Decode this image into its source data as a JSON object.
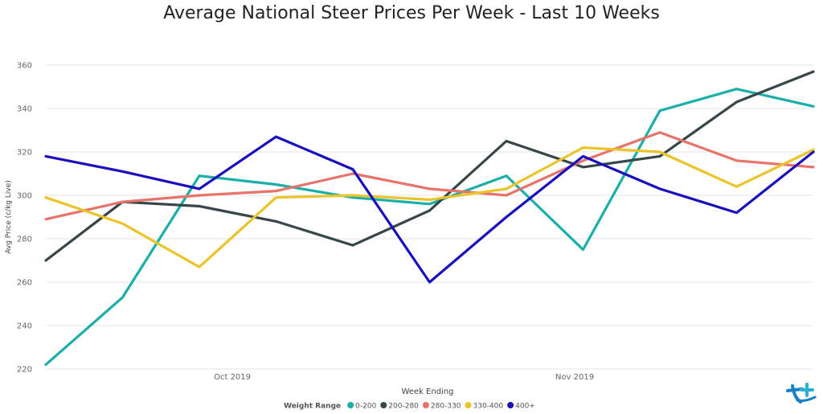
{
  "chart_data": {
    "type": "line",
    "title": "Average National Steer Prices Per Week - Last 10 Weeks",
    "xlabel": "Week Ending",
    "ylabel": "Avg Price (c/kg Live)",
    "ylim": [
      220,
      360
    ],
    "yticks": [
      220,
      240,
      260,
      280,
      300,
      320,
      340,
      360
    ],
    "xticks": [
      {
        "label": "Oct 2019",
        "x": 2.43
      },
      {
        "label": "Nov 2019",
        "x": 6.89
      }
    ],
    "grid": true,
    "legend": {
      "title": "Weight Range",
      "placement": "bottom"
    },
    "x": [
      0,
      1,
      2,
      3,
      4,
      5,
      6,
      7,
      8,
      9,
      10
    ],
    "series": [
      {
        "name": "0-200",
        "color": "#1aafa8",
        "values": [
          222,
          253,
          309,
          305,
          299,
          296,
          309,
          275,
          339,
          349,
          341
        ]
      },
      {
        "name": "200-280",
        "color": "#374649",
        "values": [
          270,
          297,
          295,
          288,
          277,
          293,
          325,
          313,
          318,
          343,
          357
        ]
      },
      {
        "name": "280-330",
        "color": "#e8736b",
        "values": [
          289,
          297,
          300,
          302,
          310,
          303,
          300,
          316,
          329,
          316,
          313
        ]
      },
      {
        "name": "330-400",
        "color": "#eac42a",
        "values": [
          299,
          287,
          267,
          299,
          300,
          298,
          303,
          322,
          320,
          304,
          321
        ]
      },
      {
        "name": "400+",
        "color": "#1a0fbd",
        "values": [
          318,
          311,
          303,
          327,
          312,
          260,
          290,
          318,
          303,
          292,
          320
        ]
      }
    ]
  },
  "logo": {
    "name": "brand-logo",
    "colors": [
      "#1a7fc4",
      "#2ab0d8"
    ]
  }
}
